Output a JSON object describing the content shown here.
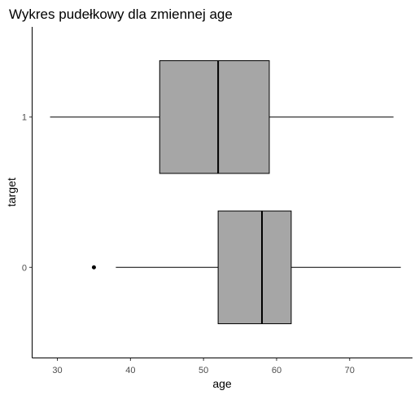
{
  "chart_data": {
    "type": "boxplot",
    "orientation": "horizontal",
    "title": "Wykres pudełkowy dla zmiennej age",
    "xlabel": "age",
    "ylabel": "target",
    "xlim": [
      26.6,
      78.6
    ],
    "x_ticks": [
      30,
      40,
      50,
      60,
      70
    ],
    "categories": [
      "0",
      "1"
    ],
    "boxes": [
      {
        "category": "0",
        "whisker_low": 38,
        "q1": 52,
        "median": 58,
        "q3": 62,
        "whisker_high": 77,
        "outliers": [
          35
        ]
      },
      {
        "category": "1",
        "whisker_low": 29,
        "q1": 44,
        "median": 52,
        "q3": 59,
        "whisker_high": 76,
        "outliers": []
      }
    ],
    "box_fill": "#a6a6a6",
    "line_color": "#000000",
    "grid": false,
    "legend": "none"
  }
}
